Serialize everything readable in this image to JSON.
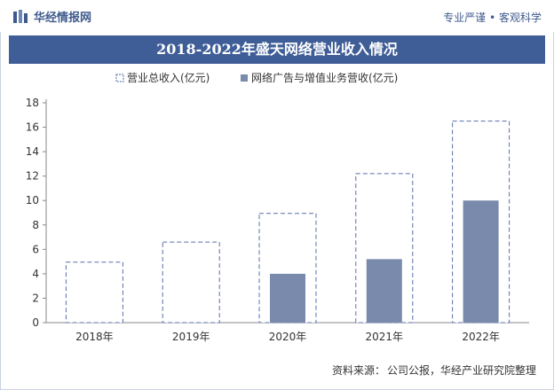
{
  "header": {
    "brand": "华经情报网",
    "tagline": "专业严谨 • 客观科学"
  },
  "footer": {
    "source_label": "资料来源：",
    "source_text": "公司公报，华经产业研究院整理"
  },
  "colors": {
    "title_band": "#3f5e97",
    "brand": "#3f5a8c",
    "outline_series": "#5a6fa8",
    "filled_series": "#7a8aad"
  },
  "chart_data": {
    "type": "bar",
    "title": "2018-2022年盛天网络营业收入情况",
    "categories": [
      "2018年",
      "2019年",
      "2020年",
      "2021年",
      "2022年"
    ],
    "series": [
      {
        "name": "营业总收入(亿元)",
        "values": [
          4.95,
          6.6,
          8.95,
          12.2,
          16.5
        ],
        "style": "dashed-outline"
      },
      {
        "name": "网络广告与增值业务营收(亿元)",
        "values": [
          null,
          null,
          4.0,
          5.2,
          10.0
        ],
        "style": "filled"
      }
    ],
    "ylim": [
      0,
      18
    ],
    "yticks": [
      0,
      2,
      4,
      6,
      8,
      10,
      12,
      14,
      16,
      18
    ],
    "grid": false,
    "legend": "top-center",
    "overlap": true
  }
}
